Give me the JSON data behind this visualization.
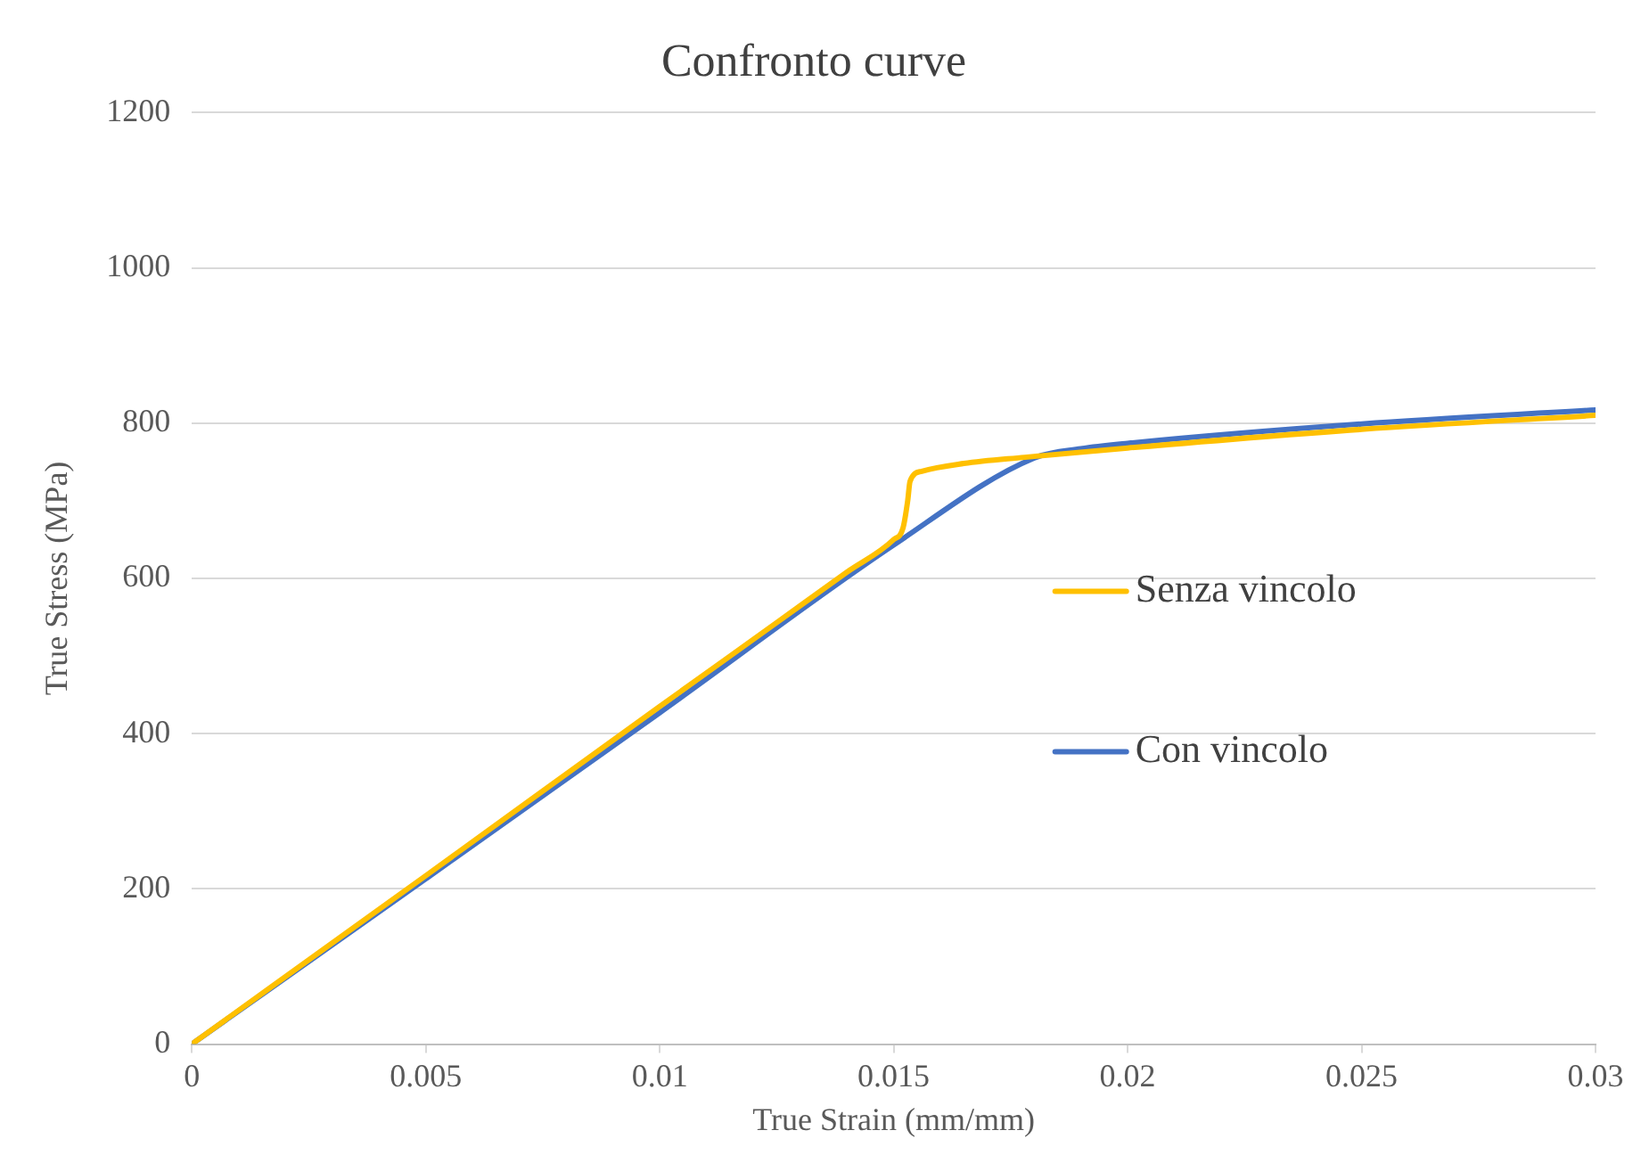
{
  "chart_data": {
    "type": "line",
    "title": "Confronto curve",
    "xlabel": "True Strain (mm/mm)",
    "ylabel": "True Stress (MPa)",
    "xlim": [
      0,
      0.03
    ],
    "xticks": [
      0,
      0.005,
      0.01,
      0.015,
      0.02,
      0.025,
      0.03
    ],
    "ylim": [
      0,
      1200
    ],
    "yticks": [
      0,
      200,
      400,
      600,
      800,
      1000,
      1200
    ],
    "grid": "y",
    "legend": "right",
    "marker": "none",
    "line_style": "solid",
    "series": [
      {
        "name": "Senza vincolo",
        "color": "#ffc000",
        "x": [
          0,
          0.005,
          0.01,
          0.0125,
          0.014,
          0.015,
          0.0152,
          0.0153,
          0.01535,
          0.0156,
          0.0165,
          0.0178,
          0.02,
          0.025,
          0.03
        ],
        "values": [
          0,
          217,
          435,
          543,
          608,
          650,
          665,
          700,
          725,
          738,
          748,
          756,
          768,
          792,
          810
        ]
      },
      {
        "name": "Con vincolo",
        "color": "#4472c4",
        "x": [
          0,
          0.005,
          0.01,
          0.015,
          0.018,
          0.019,
          0.02,
          0.025,
          0.03
        ],
        "values": [
          0,
          213,
          427,
          643,
          755,
          767,
          774,
          799,
          817
        ]
      }
    ]
  }
}
